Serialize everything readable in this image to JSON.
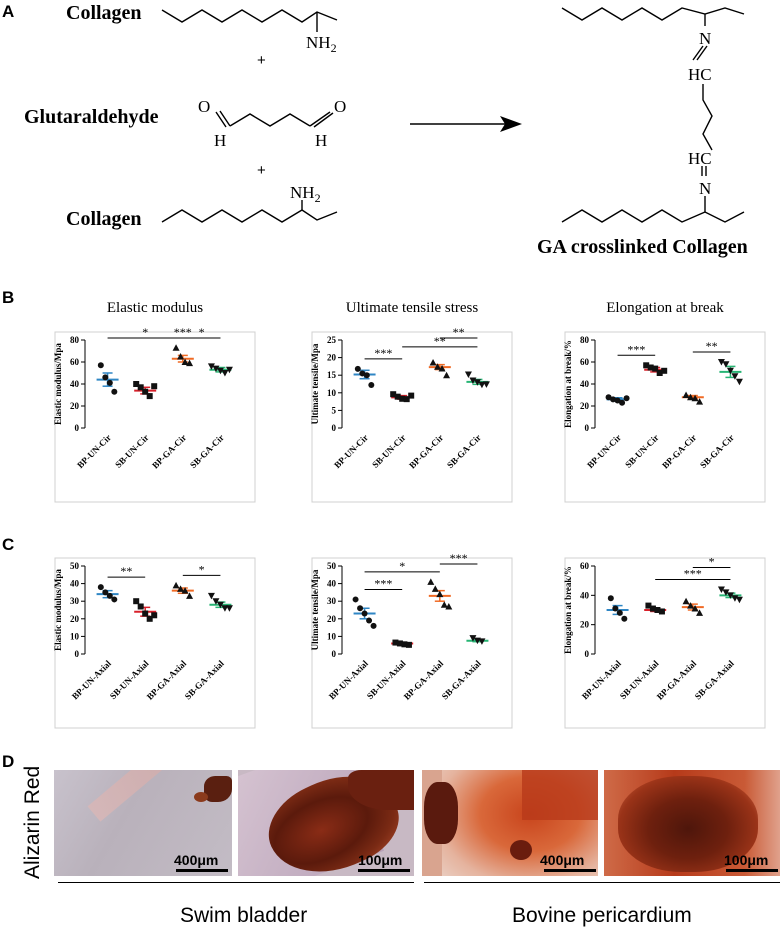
{
  "panels": {
    "a": "A",
    "b": "B",
    "c": "C",
    "d": "D"
  },
  "scheme": {
    "collagen_top": "Collagen",
    "glutaraldehyde": "Glutaraldehyde",
    "collagen_bottom": "Collagen",
    "plus_1": "+",
    "plus_2": "+",
    "product_label": "GA crosslinked Collagen",
    "nh2_top": "NH2",
    "nh2_bottom": "NH2",
    "o_left": "O",
    "o_right": "O",
    "h_left": "H",
    "h_right": "H",
    "n_top": "N",
    "n_bottom": "N",
    "hc_top": "HC",
    "hc_bottom": "HC"
  },
  "colors": {
    "BP-UN": "#2f86c4",
    "SB-UN": "#d8202a",
    "BP-GA": "#f06a24",
    "SB-GA": "#27b574"
  },
  "chart_data": [
    {
      "type": "scatter",
      "row": "B",
      "title": "Elastic modulus",
      "ylabel": "Elastic modulus/Mpa",
      "ylim": [
        0,
        80
      ],
      "yticks": [
        0,
        20,
        40,
        60,
        80
      ],
      "categories": [
        "BP-UN-Cir",
        "SB-UN-Cir",
        "BP-GA-Cir",
        "SB-GA-Cir"
      ],
      "groups": [
        {
          "mean": 44,
          "sem": 6,
          "points": [
            57,
            46,
            41,
            33
          ],
          "marker": "circle"
        },
        {
          "mean": 34,
          "sem": 3,
          "points": [
            40,
            37,
            33,
            29,
            38
          ],
          "marker": "square"
        },
        {
          "mean": 63,
          "sem": 3,
          "points": [
            73,
            65,
            60,
            59
          ],
          "marker": "triangle-up"
        },
        {
          "mean": 53,
          "sem": 2,
          "points": [
            56,
            54,
            52,
            50,
            53
          ],
          "marker": "triangle-down"
        }
      ],
      "significance": [
        {
          "from": 0,
          "to": 2,
          "label": "*"
        },
        {
          "from": 1,
          "to": 3,
          "label": "***"
        },
        {
          "from": 2,
          "to": 3,
          "label": "*"
        }
      ]
    },
    {
      "type": "scatter",
      "row": "B",
      "title": "Ultimate tensile stress",
      "ylabel": "Ultimate tensile/Mpa",
      "ylim": [
        0,
        25
      ],
      "yticks": [
        0,
        5,
        10,
        15,
        20,
        25
      ],
      "categories": [
        "BP-UN-Cir",
        "SB-UN-Cir",
        "BP-GA-Cir",
        "SB-GA-Cir"
      ],
      "groups": [
        {
          "mean": 15.2,
          "sem": 1.2,
          "points": [
            16.8,
            15.5,
            15,
            12.2
          ],
          "marker": "circle"
        },
        {
          "mean": 8.7,
          "sem": 0.5,
          "points": [
            9.6,
            8.9,
            8.3,
            8.2,
            9.2
          ],
          "marker": "square"
        },
        {
          "mean": 17.3,
          "sem": 0.7,
          "points": [
            18.6,
            17.4,
            16.9,
            15
          ],
          "marker": "triangle-up"
        },
        {
          "mean": 13.1,
          "sem": 0.7,
          "points": [
            15.2,
            13.5,
            13,
            12.3,
            12.4
          ],
          "marker": "triangle-down"
        }
      ],
      "significance": [
        {
          "from": 0,
          "to": 1,
          "label": "***"
        },
        {
          "from": 1,
          "to": 3,
          "label": "**"
        },
        {
          "from": 2,
          "to": 3,
          "label": "**"
        }
      ]
    },
    {
      "type": "scatter",
      "row": "B",
      "title": "Elongation at break",
      "ylabel": "Elongation at break/%",
      "ylim": [
        0,
        80
      ],
      "yticks": [
        0,
        20,
        40,
        60,
        80
      ],
      "categories": [
        "BP-UN-Cir",
        "SB-UN-Cir",
        "BP-GA-Cir",
        "SB-GA-Cir"
      ],
      "groups": [
        {
          "mean": 26,
          "sem": 1.5,
          "points": [
            28,
            26,
            25,
            23,
            27
          ],
          "marker": "circle"
        },
        {
          "mean": 53,
          "sem": 2,
          "points": [
            57,
            55,
            54,
            50,
            52
          ],
          "marker": "square"
        },
        {
          "mean": 28,
          "sem": 1.5,
          "points": [
            30,
            28,
            27,
            24
          ],
          "marker": "triangle-up"
        },
        {
          "mean": 51,
          "sem": 5,
          "points": [
            60,
            58,
            52,
            47,
            42
          ],
          "marker": "triangle-down"
        }
      ],
      "significance": [
        {
          "from": 0,
          "to": 1,
          "label": "***"
        },
        {
          "from": 2,
          "to": 3,
          "label": "**"
        }
      ]
    },
    {
      "type": "scatter",
      "row": "C",
      "title": "",
      "ylabel": "Elastic modulus/Mpa",
      "ylim": [
        0,
        50
      ],
      "yticks": [
        0,
        10,
        20,
        30,
        40,
        50
      ],
      "categories": [
        "BP-UN-Axial",
        "SB-UN-Axial",
        "BP-GA-Axial",
        "SB-GA-Axial"
      ],
      "groups": [
        {
          "mean": 34,
          "sem": 2,
          "points": [
            38,
            35,
            33,
            31
          ],
          "marker": "circle"
        },
        {
          "mean": 24,
          "sem": 2.5,
          "points": [
            30,
            27,
            23,
            20,
            22
          ],
          "marker": "square"
        },
        {
          "mean": 36,
          "sem": 1.5,
          "points": [
            39,
            37,
            36,
            33
          ],
          "marker": "triangle-up"
        },
        {
          "mean": 28,
          "sem": 1.5,
          "points": [
            33,
            30,
            28,
            26,
            26
          ],
          "marker": "triangle-down"
        }
      ],
      "significance": [
        {
          "from": 0,
          "to": 1,
          "label": "**"
        },
        {
          "from": 2,
          "to": 3,
          "label": "*"
        }
      ]
    },
    {
      "type": "scatter",
      "row": "C",
      "title": "",
      "ylabel": "Ultimate tensile/Mpa",
      "ylim": [
        0,
        50
      ],
      "yticks": [
        0,
        10,
        20,
        30,
        40,
        50
      ],
      "categories": [
        "BP-UN-Axial",
        "SB-UN-Axial",
        "BP-GA-Axial",
        "SB-GA-Axial"
      ],
      "groups": [
        {
          "mean": 23,
          "sem": 3,
          "points": [
            31,
            26,
            23,
            19,
            16
          ],
          "marker": "circle"
        },
        {
          "mean": 6,
          "sem": 0.5,
          "points": [
            6.5,
            6,
            5.5,
            5.2
          ],
          "marker": "square"
        },
        {
          "mean": 33,
          "sem": 3,
          "points": [
            41,
            37,
            34,
            28,
            27
          ],
          "marker": "triangle-up"
        },
        {
          "mean": 7.5,
          "sem": 0.5,
          "points": [
            9,
            7.6,
            7.2
          ],
          "marker": "triangle-down"
        }
      ],
      "significance": [
        {
          "from": 0,
          "to": 1,
          "label": "***"
        },
        {
          "from": 0,
          "to": 2,
          "label": "*"
        },
        {
          "from": 2,
          "to": 3,
          "label": "***"
        }
      ]
    },
    {
      "type": "scatter",
      "row": "C",
      "title": "",
      "ylabel": "Elongation at break/%",
      "ylim": [
        0,
        60
      ],
      "yticks": [
        0,
        20,
        40,
        60
      ],
      "categories": [
        "BP-UN-Axial",
        "SB-UN-Axial",
        "BP-GA-Axial",
        "SB-GA-Axial"
      ],
      "groups": [
        {
          "mean": 30,
          "sem": 3,
          "points": [
            38,
            31,
            28,
            24
          ],
          "marker": "circle"
        },
        {
          "mean": 30,
          "sem": 1,
          "points": [
            33,
            31,
            30,
            29
          ],
          "marker": "square"
        },
        {
          "mean": 32,
          "sem": 2,
          "points": [
            36,
            33,
            31,
            28
          ],
          "marker": "triangle-up"
        },
        {
          "mean": 40,
          "sem": 1.5,
          "points": [
            44,
            42,
            40,
            38,
            37
          ],
          "marker": "triangle-down"
        }
      ],
      "significance": [
        {
          "from": 1,
          "to": 3,
          "label": "***"
        },
        {
          "from": 2,
          "to": 3,
          "label": "*"
        }
      ]
    }
  ],
  "histology": {
    "stain_label": "Alizarin Red",
    "images": [
      {
        "scale": "400μm"
      },
      {
        "scale": "100μm"
      },
      {
        "scale": "400μm"
      },
      {
        "scale": "100μm"
      }
    ],
    "group_left": "Swim bladder",
    "group_right": "Bovine pericardium"
  }
}
